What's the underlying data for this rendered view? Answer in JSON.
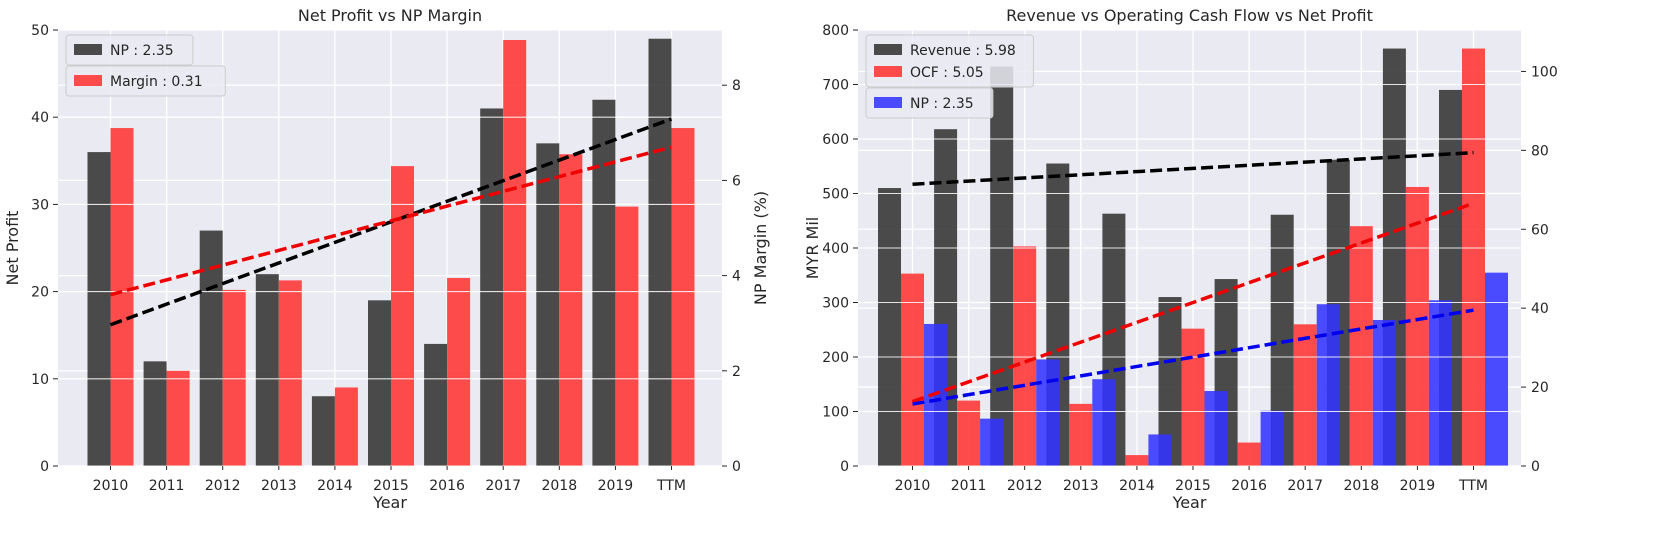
{
  "chart_data": [
    {
      "type": "bar",
      "title": "Net Profit vs NP Margin",
      "xlabel": "Year",
      "ylabel": "Net Profit",
      "ylabel_right": "NP Margin (%)",
      "categories": [
        "2010",
        "2011",
        "2012",
        "2013",
        "2014",
        "2015",
        "2016",
        "2017",
        "2018",
        "2019",
        "TTM"
      ],
      "ylim": [
        0,
        50
      ],
      "yticks": [
        0,
        10,
        20,
        30,
        40,
        50
      ],
      "ylim_right": [
        0,
        9.16
      ],
      "yticks_right": [
        0,
        2,
        4,
        6,
        8
      ],
      "series": [
        {
          "name": "NP : 2.35",
          "axis": "left",
          "color": "#333333",
          "values": [
            36,
            12,
            27,
            22,
            8,
            19,
            14,
            41,
            37,
            42,
            49
          ]
        },
        {
          "name": "Margin : 0.31",
          "axis": "right",
          "color": "#ff3333",
          "values": [
            7.1,
            2.0,
            3.7,
            3.9,
            1.65,
            6.3,
            3.95,
            8.95,
            6.55,
            5.45,
            7.1
          ]
        }
      ],
      "trendlines": [
        {
          "axis": "left",
          "color": "#000000",
          "start": [
            0,
            16.2
          ],
          "end": [
            10,
            39.8
          ]
        },
        {
          "axis": "right",
          "color": "#ee0000",
          "start": [
            0,
            3.6
          ],
          "end": [
            10,
            6.7
          ]
        }
      ],
      "legend_placement": [
        "top-left",
        "upper-left"
      ],
      "grid": true
    },
    {
      "type": "bar",
      "title": "Revenue vs Operating Cash Flow vs Net Profit",
      "xlabel": "Year",
      "ylabel": "MYR Mil",
      "categories": [
        "2010",
        "2011",
        "2012",
        "2013",
        "2014",
        "2015",
        "2016",
        "2017",
        "2018",
        "2019",
        "TTM"
      ],
      "ylim": [
        0,
        800
      ],
      "yticks": [
        0,
        100,
        200,
        300,
        400,
        500,
        600,
        700,
        800
      ],
      "ylim_right": [
        0,
        110.5
      ],
      "yticks_right": [
        0,
        20,
        40,
        60,
        80,
        100
      ],
      "series": [
        {
          "name": "Revenue : 5.98",
          "axis": "left",
          "color": "#333333",
          "values": [
            510,
            618,
            733,
            555,
            463,
            310,
            343,
            461,
            562,
            766,
            690
          ]
        },
        {
          "name": "OCF : 5.05",
          "axis": "left",
          "color": "#ff3333",
          "values": [
            353,
            120,
            403,
            114,
            20,
            252,
            43,
            260,
            440,
            512,
            766
          ]
        },
        {
          "name": "NP : 2.35",
          "axis": "right",
          "color": "#3333ff",
          "values": [
            36,
            12,
            27,
            22,
            8,
            19,
            14,
            41,
            37,
            42,
            49
          ]
        }
      ],
      "trendlines": [
        {
          "axis": "left",
          "color": "#000000",
          "start": [
            0,
            517
          ],
          "end": [
            10,
            575
          ]
        },
        {
          "axis": "left",
          "color": "#ee0000",
          "start": [
            0,
            118
          ],
          "end": [
            10,
            482
          ]
        },
        {
          "axis": "right",
          "color": "#0000ee",
          "start": [
            0,
            15.7
          ],
          "end": [
            10,
            39.5
          ]
        }
      ],
      "legend_placement": [
        "top-left",
        "upper-left"
      ],
      "grid": true
    }
  ]
}
